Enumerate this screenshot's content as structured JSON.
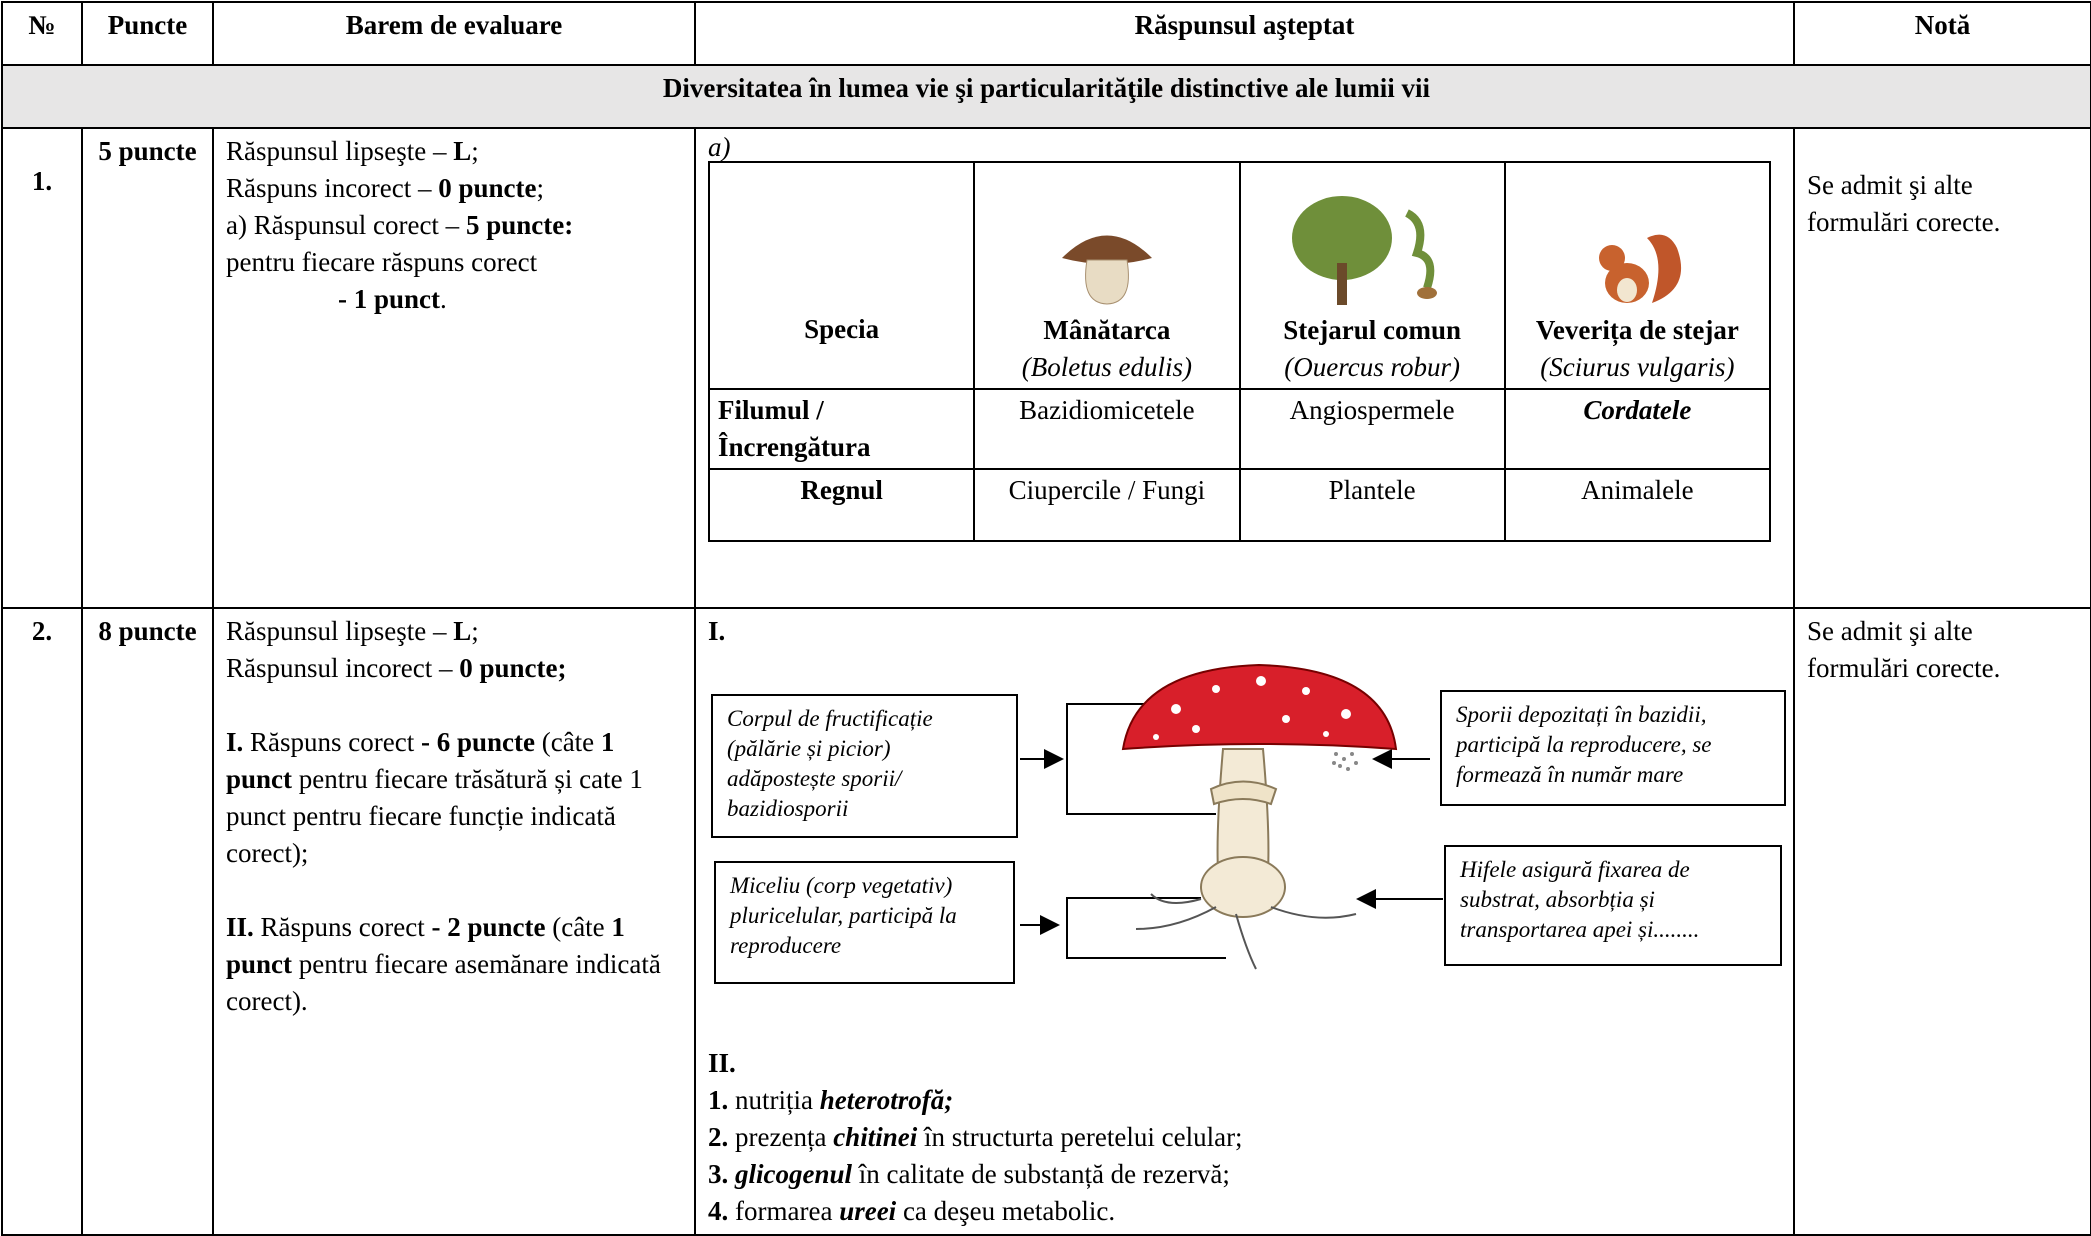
{
  "header": [
    "№",
    "Puncte",
    "Barem de evaluare",
    "Răspunsul aşteptat",
    "Notă"
  ],
  "section": "Diversitatea în lumea vie şi particularităţile distinctive ale lumii vii",
  "rows": [
    {
      "number": "1.",
      "points": "5 puncte",
      "criteria": [
        [
          "Răspunsul lipseşte – ",
          "L",
          ";"
        ],
        [
          "Răspuns incorect – ",
          "0 puncte",
          ";"
        ],
        [
          "a) Răspunsul corect – ",
          "5 puncte:"
        ],
        [
          "pentru  fiecare răspuns corect"
        ],
        [
          "- 1 punct",
          "."
        ]
      ],
      "answer": {
        "label": "a)",
        "species_table": {
          "header": "Specia",
          "species": [
            {
              "name": "Mânătarca",
              "latin": "(Boletus edulis)"
            },
            {
              "name": "Stejarul comun",
              "latin": "(Ouercus robur)"
            },
            {
              "name": "Veverița de stejar",
              "latin": "(Sciurus vulgaris)"
            }
          ],
          "rows": [
            [
              "Filumul / Încrengătura",
              "Bazidiomicetele",
              "Angiospermele",
              "Cordatele"
            ],
            [
              "Regnul",
              "Ciupercile / Fungi",
              "Plantele",
              "Animalele"
            ]
          ]
        }
      },
      "note": "Se admit şi alte formulări corecte."
    },
    {
      "number": "2.",
      "points": "8 puncte",
      "criteria": [
        [
          "Răspunsul lipseşte – ",
          "L",
          ";"
        ],
        [
          "Răspunsul incorect – ",
          "0 puncte;"
        ],
        [
          "I.",
          " Răspuns corect ",
          "- 6 puncte",
          " (câte ",
          "1 punct",
          " pentru fiecare trăsătură și cate 1 punct pentru fiecare funcție indicată corect);"
        ],
        [
          "II.",
          " Răspuns corect ",
          "- 2 puncte",
          " (câte ",
          "1 punct",
          " pentru fiecare asemănare indicată  corect)."
        ]
      ],
      "answer": {
        "part1_label": "I.",
        "boxes": [
          "Corpul de fructificație (pălărie și picior) adăpostește sporii/ bazidiosporii",
          "Miceliu (corp vegetativ) pluricelular, participă la reproducere",
          "Sporii depozitați în bazidii, participă la reproducere, se formează în număr mare",
          "Hifele asigură fixarea de substrat, absorbția și transportarea apei și........"
        ],
        "part2_label": "II.",
        "items": [
          [
            "1. ",
            "nutriția ",
            "heterotrofă;"
          ],
          [
            "2. ",
            "prezența ",
            "chitinei",
            " în structurta peretelui celular;"
          ],
          [
            "3. ",
            "glicogenul",
            " în calitate de substanță de rezervă;"
          ],
          [
            "4. ",
            "formarea ",
            "ureei",
            " ca deşeu metabolic."
          ]
        ]
      },
      "note": "Se admit şi alte formulări corecte."
    }
  ]
}
